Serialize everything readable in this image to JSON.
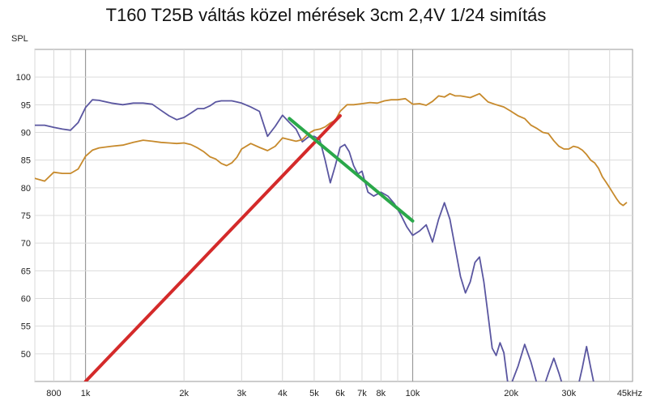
{
  "chart_data": {
    "type": "line",
    "title": "T160 T25B váltás közel mérések 3cm 2,4V 1/24 simítás",
    "ylabel": "SPL",
    "xscale": "log",
    "xlim": [
      700,
      47000
    ],
    "ylim": [
      45,
      105
    ],
    "grid": true,
    "x_tick_labels": [
      {
        "value": 800,
        "label": "800"
      },
      {
        "value": 1000,
        "label": "1k"
      },
      {
        "value": 2000,
        "label": "2k"
      },
      {
        "value": 3000,
        "label": "3k"
      },
      {
        "value": 4000,
        "label": "4k"
      },
      {
        "value": 5000,
        "label": "5k"
      },
      {
        "value": 6000,
        "label": "6k"
      },
      {
        "value": 7000,
        "label": "7k"
      },
      {
        "value": 8000,
        "label": "8k"
      },
      {
        "value": 10000,
        "label": "10k"
      },
      {
        "value": 20000,
        "label": "20k"
      },
      {
        "value": 30000,
        "label": "30k"
      },
      {
        "value": 45000,
        "label": "45kHz"
      }
    ],
    "y_tick_labels": [
      {
        "value": 100,
        "label": "100"
      },
      {
        "value": 95,
        "label": "95"
      },
      {
        "value": 90,
        "label": "90"
      },
      {
        "value": 85,
        "label": "85"
      },
      {
        "value": 80,
        "label": "80"
      },
      {
        "value": 75,
        "label": "75"
      },
      {
        "value": 70,
        "label": "70"
      },
      {
        "value": 65,
        "label": "65"
      },
      {
        "value": 60,
        "label": "60"
      },
      {
        "value": 55,
        "label": "55"
      },
      {
        "value": 50,
        "label": "50"
      }
    ],
    "series": [
      {
        "color": "#5a56a0",
        "width": 1.8,
        "x": [
          700,
          750,
          800,
          850,
          900,
          950,
          1000,
          1050,
          1100,
          1200,
          1300,
          1400,
          1500,
          1600,
          1700,
          1800,
          1900,
          2000,
          2100,
          2200,
          2300,
          2400,
          2500,
          2600,
          2700,
          2800,
          2900,
          3000,
          3200,
          3400,
          3600,
          3800,
          4000,
          4200,
          4400,
          4600,
          4800,
          5000,
          5200,
          5400,
          5600,
          5800,
          6000,
          6200,
          6400,
          6600,
          6800,
          7000,
          7300,
          7600,
          8000,
          8400,
          8800,
          9200,
          9600,
          10000,
          10500,
          11000,
          11500,
          12000,
          12500,
          13000,
          13500,
          14000,
          14500,
          15000,
          15500,
          16000,
          16500,
          17000,
          17500,
          18000,
          18500,
          19000,
          19500,
          20000,
          21000,
          22000,
          23000,
          24000,
          25000,
          26000,
          27000,
          28000,
          29000,
          30000,
          31000,
          32000,
          33000,
          34000,
          35000,
          36000,
          37000
        ],
        "y": [
          91.3,
          91.3,
          90.9,
          90.6,
          90.4,
          91.8,
          94.5,
          95.9,
          95.8,
          95.3,
          95.0,
          95.3,
          95.3,
          95.1,
          94.0,
          93.0,
          92.3,
          92.7,
          93.5,
          94.3,
          94.3,
          94.8,
          95.5,
          95.7,
          95.7,
          95.7,
          95.5,
          95.3,
          94.6,
          93.8,
          89.3,
          91.1,
          93.1,
          91.8,
          90.6,
          88.3,
          89.2,
          89.3,
          88.7,
          85.0,
          80.9,
          84.0,
          87.3,
          87.8,
          86.5,
          84.0,
          82.5,
          83.0,
          79.2,
          78.5,
          79.2,
          78.5,
          77.1,
          75.1,
          72.9,
          71.4,
          72.2,
          73.3,
          70.2,
          74.3,
          77.3,
          74.3,
          69.0,
          64.0,
          61.0,
          63.0,
          66.5,
          67.5,
          63.0,
          57.0,
          51.0,
          49.7,
          52.0,
          50.2,
          45.0,
          44.5,
          47.8,
          51.7,
          48.5,
          44.5,
          43.5,
          46.5,
          49.2,
          46.5,
          43.5,
          42.5,
          42.0,
          44.0,
          47.5,
          51.3,
          47.5,
          44.0,
          40.0
        ],
        "x_range": [
          700,
          37000
        ]
      },
      {
        "color": "#c78a2c",
        "width": 1.8,
        "x": [
          700,
          750,
          800,
          850,
          900,
          950,
          1000,
          1050,
          1100,
          1200,
          1300,
          1400,
          1500,
          1600,
          1700,
          1800,
          1900,
          2000,
          2100,
          2200,
          2300,
          2400,
          2500,
          2600,
          2700,
          2800,
          2900,
          3000,
          3200,
          3400,
          3600,
          3800,
          4000,
          4200,
          4400,
          4600,
          4800,
          5000,
          5200,
          5400,
          5600,
          5800,
          6000,
          6300,
          6600,
          7000,
          7400,
          7800,
          8200,
          8600,
          9000,
          9500,
          10000,
          10500,
          11000,
          11500,
          12000,
          12500,
          13000,
          13500,
          14000,
          15000,
          16000,
          17000,
          18000,
          19000,
          20000,
          21000,
          22000,
          23000,
          24000,
          25000,
          26000,
          27000,
          28000,
          29000,
          30000,
          31000,
          32000,
          33000,
          34000,
          35000,
          36000,
          37000,
          38000,
          39000,
          40000,
          41000,
          42000,
          43000,
          44000,
          45000
        ],
        "y": [
          81.7,
          81.2,
          82.8,
          82.6,
          82.6,
          83.4,
          85.7,
          86.8,
          87.2,
          87.5,
          87.7,
          88.2,
          88.6,
          88.4,
          88.2,
          88.1,
          88.0,
          88.1,
          87.8,
          87.2,
          86.5,
          85.6,
          85.2,
          84.4,
          84.0,
          84.5,
          85.5,
          87.0,
          88.0,
          87.3,
          86.7,
          87.5,
          89.0,
          88.7,
          88.4,
          88.7,
          89.8,
          90.4,
          90.6,
          91.0,
          91.7,
          92.2,
          93.8,
          95.0,
          95.0,
          95.2,
          95.4,
          95.3,
          95.7,
          95.9,
          95.9,
          96.1,
          95.1,
          95.2,
          94.9,
          95.6,
          96.6,
          96.4,
          97.0,
          96.6,
          96.6,
          96.3,
          97.0,
          95.5,
          95.0,
          94.6,
          93.8,
          93.0,
          92.5,
          91.3,
          90.7,
          90.0,
          89.8,
          88.5,
          87.5,
          87.0,
          87.0,
          87.5,
          87.3,
          86.8,
          86.0,
          85.0,
          84.5,
          83.5,
          82.0,
          81.0,
          80.0,
          79.0,
          78.0,
          77.2,
          76.8,
          77.3
        ]
      },
      {
        "color": "#d42a2a",
        "width": 4,
        "x": [
          1000,
          6000
        ],
        "y": [
          45,
          93
        ]
      },
      {
        "color": "#2aa84a",
        "width": 4,
        "x": [
          4200,
          10000
        ],
        "y": [
          92.5,
          74
        ]
      }
    ]
  }
}
